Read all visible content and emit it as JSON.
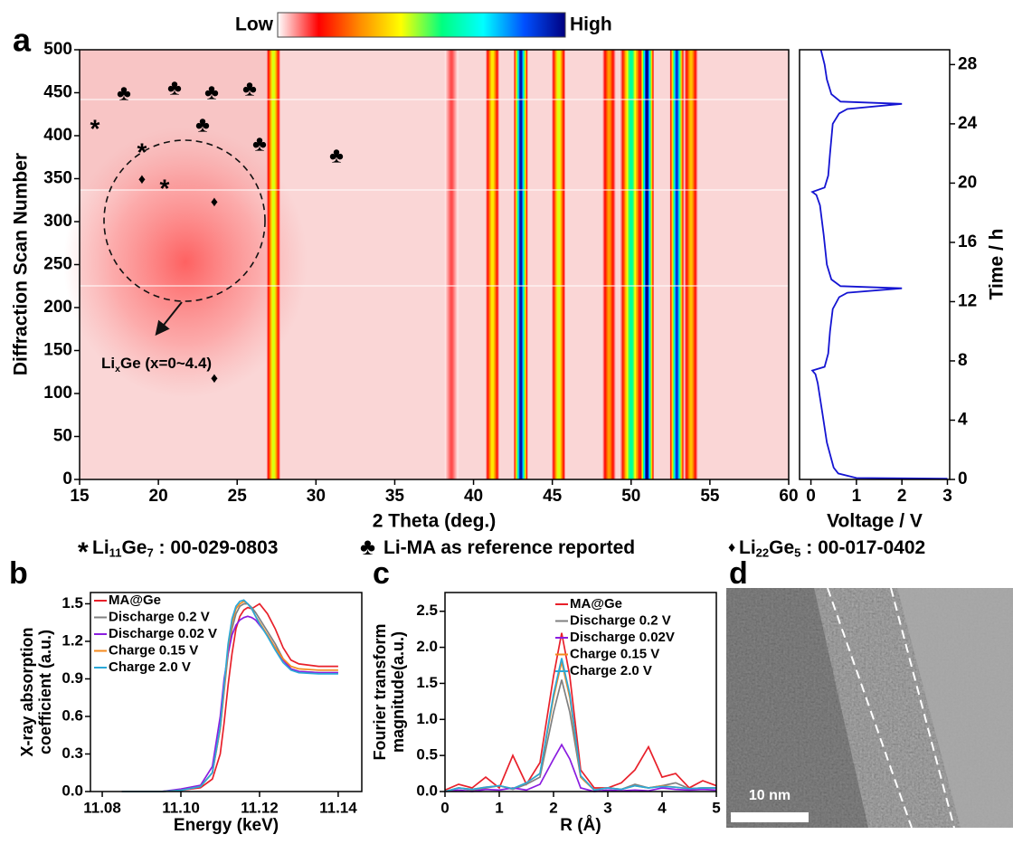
{
  "chart_data": [
    {
      "type": "heatmap",
      "panel_label": "a",
      "xlabel": "2 Theta (deg.)",
      "ylabel": "Diffraction Scan Number",
      "xlim": [
        15,
        60
      ],
      "ylim": [
        0,
        500
      ],
      "xticks": [
        15,
        20,
        25,
        30,
        35,
        40,
        45,
        50,
        55,
        60
      ],
      "yticks": [
        0,
        50,
        100,
        150,
        200,
        250,
        300,
        350,
        400,
        450,
        500
      ],
      "colorbar_labels": [
        "Low",
        "High"
      ],
      "colormap": [
        "#ffffff",
        "#ff0000",
        "#ff8c00",
        "#ffff00",
        "#00ff80",
        "#00ffff",
        "#0050ff",
        "#000080"
      ],
      "peaks": [
        {
          "x": 27.3,
          "intensity": 0.45
        },
        {
          "x": 38.6,
          "intensity": 0.1
        },
        {
          "x": 41.2,
          "intensity": 0.4
        },
        {
          "x": 43.0,
          "intensity": 0.95
        },
        {
          "x": 45.4,
          "intensity": 0.45
        },
        {
          "x": 48.6,
          "intensity": 0.3
        },
        {
          "x": 50.0,
          "intensity": 0.6
        },
        {
          "x": 51.0,
          "intensity": 1.0
        },
        {
          "x": 52.9,
          "intensity": 0.9
        },
        {
          "x": 53.8,
          "intensity": 0.35
        }
      ],
      "annotation": [
        "Li",
        "x",
        "Ge (x=0~4.4)"
      ],
      "phase_legend": [
        {
          "symbol": "*",
          "label": [
            "Li",
            "11",
            "Ge",
            "7",
            " : 00-029-0803"
          ]
        },
        {
          "symbol": "♣",
          "label": [
            "Li-MA as reference reported"
          ]
        },
        {
          "symbol": "♦",
          "label": [
            "Li",
            "22",
            "Ge",
            "5",
            " : 00-017-0402"
          ]
        }
      ]
    },
    {
      "type": "line",
      "xlabel": "Voltage / V",
      "ylabel": "Time / h",
      "xlim": [
        -0.25,
        3.05
      ],
      "ylim": [
        0,
        29
      ],
      "xticks": [
        0,
        1,
        2,
        3
      ],
      "yticks": [
        0,
        4,
        8,
        12,
        16,
        20,
        24,
        28
      ],
      "color": "#1414d2",
      "x": [
        3.0,
        1.0,
        0.6,
        0.5,
        0.35,
        0.25,
        0.15,
        0.1,
        0.03,
        0.3,
        0.38,
        0.42,
        0.48,
        0.62,
        0.8,
        2.0,
        0.65,
        0.45,
        0.35,
        0.28,
        0.2,
        0.12,
        0.03,
        0.3,
        0.38,
        0.42,
        0.48,
        0.62,
        0.8,
        2.0,
        0.65,
        0.45,
        0.35,
        0.3,
        0.22
      ],
      "values": [
        0.05,
        0.1,
        0.4,
        0.8,
        2.5,
        4.5,
        6.5,
        7.1,
        7.35,
        7.6,
        8.5,
        10,
        11.5,
        12.3,
        12.6,
        12.9,
        13.05,
        13.5,
        14.5,
        16.5,
        18.5,
        19.2,
        19.4,
        19.7,
        20.5,
        22,
        24,
        24.7,
        25.0,
        25.35,
        25.5,
        26,
        27,
        28,
        29
      ]
    },
    {
      "type": "line",
      "panel_label": "b",
      "xlabel": "Energy (keV)",
      "ylabel": [
        "X-ray absorption",
        "coefficient (a.u.)"
      ],
      "xlim": [
        11.077,
        11.146
      ],
      "ylim": [
        0,
        1.59
      ],
      "xticks": [
        11.08,
        {
          "value": 11.1,
          "label": "11.10"
        },
        11.12,
        11.14
      ],
      "yticks": [
        {
          "value": 0,
          "label": "0.0"
        },
        0.3,
        0.6,
        0.9,
        1.2,
        1.5
      ],
      "x": [
        11.085,
        11.09,
        11.095,
        11.1,
        11.105,
        11.108,
        11.11,
        11.111,
        11.112,
        11.113,
        11.114,
        11.115,
        11.116,
        11.117,
        11.118,
        11.119,
        11.12,
        11.122,
        11.124,
        11.126,
        11.128,
        11.13,
        11.135,
        11.14
      ],
      "series": [
        {
          "name": "MA@Ge",
          "color": "#e8202a",
          "values": [
            0,
            0,
            0,
            0.01,
            0.03,
            0.1,
            0.3,
            0.55,
            0.85,
            1.1,
            1.3,
            1.4,
            1.45,
            1.47,
            1.46,
            1.48,
            1.5,
            1.42,
            1.3,
            1.15,
            1.05,
            1.02,
            1.0,
            1.0
          ]
        },
        {
          "name": "Discharge 0.2 V",
          "color": "#808080",
          "values": [
            0,
            0,
            0,
            0.01,
            0.04,
            0.15,
            0.5,
            0.8,
            1.1,
            1.3,
            1.42,
            1.48,
            1.5,
            1.5,
            1.47,
            1.43,
            1.38,
            1.28,
            1.18,
            1.06,
            0.98,
            0.96,
            0.95,
            0.95
          ]
        },
        {
          "name": "Discharge 0.02 V",
          "color": "#8a1ce0",
          "values": [
            0,
            0,
            0,
            0.02,
            0.05,
            0.2,
            0.6,
            0.9,
            1.1,
            1.25,
            1.33,
            1.37,
            1.39,
            1.4,
            1.39,
            1.37,
            1.33,
            1.25,
            1.15,
            1.05,
            0.98,
            0.96,
            0.95,
            0.95
          ]
        },
        {
          "name": "Charge 0.15 V",
          "color": "#f58a1e",
          "values": [
            0,
            0,
            0,
            0.01,
            0.04,
            0.15,
            0.5,
            0.82,
            1.15,
            1.35,
            1.46,
            1.5,
            1.52,
            1.5,
            1.46,
            1.4,
            1.35,
            1.25,
            1.15,
            1.06,
            1.0,
            0.98,
            0.97,
            0.97
          ]
        },
        {
          "name": "Charge 2.0 V",
          "color": "#2aa8d8",
          "values": [
            0,
            0,
            0,
            0.01,
            0.04,
            0.15,
            0.52,
            0.85,
            1.18,
            1.38,
            1.48,
            1.52,
            1.53,
            1.5,
            1.46,
            1.4,
            1.34,
            1.24,
            1.13,
            1.03,
            0.97,
            0.95,
            0.94,
            0.94
          ]
        }
      ]
    },
    {
      "type": "line",
      "panel_label": "c",
      "xlabel": "R (Å)",
      "ylabel": [
        "Fourier transform",
        "magnitude(a.u.)"
      ],
      "xlim": [
        0,
        5
      ],
      "ylim": [
        0,
        2.76
      ],
      "xticks": [
        0,
        1,
        2,
        3,
        4,
        5
      ],
      "yticks": [
        {
          "value": 0,
          "label": "0.0"
        },
        0.5,
        {
          "value": 1,
          "label": "1.0"
        },
        1.5,
        {
          "value": 2,
          "label": "2.0"
        },
        2.5
      ],
      "x": [
        0,
        0.25,
        0.5,
        0.75,
        1.0,
        1.25,
        1.5,
        1.75,
        2.0,
        2.15,
        2.3,
        2.5,
        2.75,
        3.0,
        3.25,
        3.5,
        3.75,
        4.0,
        4.25,
        4.5,
        4.75,
        5.0
      ],
      "series": [
        {
          "name": "MA@Ge",
          "color": "#e8202a",
          "values": [
            0.02,
            0.1,
            0.05,
            0.2,
            0.05,
            0.5,
            0.1,
            0.4,
            1.6,
            2.2,
            1.6,
            0.3,
            0.05,
            0.05,
            0.12,
            0.3,
            0.62,
            0.2,
            0.25,
            0.05,
            0.15,
            0.08
          ]
        },
        {
          "name": "Discharge 0.2 V",
          "color": "#808080",
          "values": [
            0.0,
            0.05,
            0.02,
            0.05,
            0.08,
            0.03,
            0.1,
            0.2,
            1.1,
            1.55,
            1.1,
            0.2,
            0.02,
            0.05,
            0.03,
            0.1,
            0.05,
            0.08,
            0.12,
            0.04,
            0.05,
            0.05
          ]
        },
        {
          "name": "Discharge 0.02V",
          "color": "#8a1ce0",
          "values": [
            0.0,
            0.02,
            0.0,
            0.03,
            0.02,
            0.05,
            0.02,
            0.1,
            0.45,
            0.65,
            0.45,
            0.05,
            0.0,
            0.02,
            0.01,
            0.02,
            0.01,
            0.05,
            0.03,
            0.02,
            0.03,
            0.02
          ]
        },
        {
          "name": "Charge 0.15 V",
          "color": "#f58a1e",
          "values": [
            0.0,
            0.05,
            0.03,
            0.06,
            0.08,
            0.04,
            0.12,
            0.25,
            1.3,
            1.8,
            1.3,
            0.2,
            0.02,
            0.05,
            0.03,
            0.08,
            0.05,
            0.08,
            0.06,
            0.04,
            0.05,
            0.05
          ]
        },
        {
          "name": "Charge 2.0 V",
          "color": "#2aa8d8",
          "values": [
            0.0,
            0.05,
            0.03,
            0.06,
            0.08,
            0.04,
            0.12,
            0.25,
            1.35,
            1.85,
            1.35,
            0.22,
            0.02,
            0.05,
            0.03,
            0.08,
            0.05,
            0.07,
            0.06,
            0.04,
            0.05,
            0.05
          ]
        }
      ]
    },
    {
      "type": "image",
      "panel_label": "d",
      "scale_bar_label": "10 nm"
    }
  ]
}
